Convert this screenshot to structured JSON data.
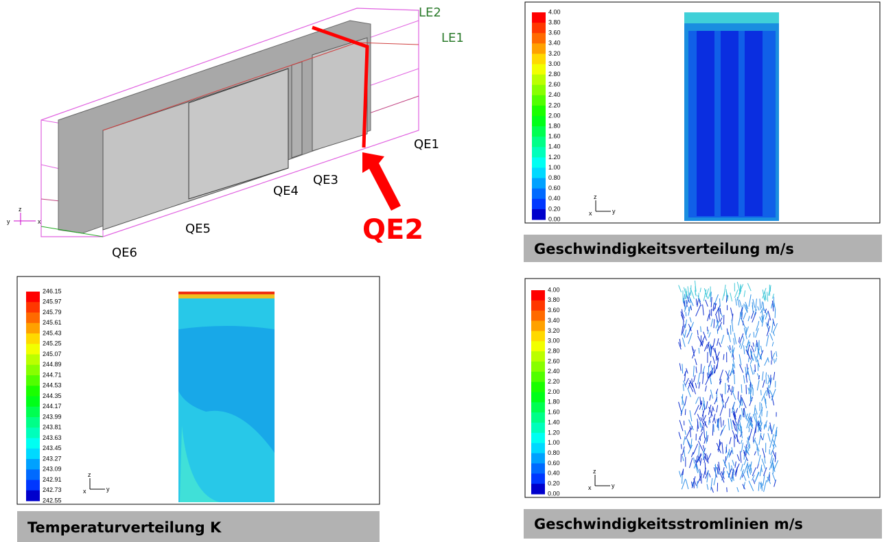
{
  "overview": {
    "labels": {
      "le2": "LE2",
      "le1": "LE1",
      "qe1": "QE1",
      "qe2": "QE2",
      "qe3": "QE3",
      "qe4": "QE4",
      "qe5": "QE5",
      "qe6": "QE6"
    },
    "axes": [
      "z",
      "x",
      "y"
    ]
  },
  "velocity": {
    "scale": [
      "4.00",
      "3.80",
      "3.60",
      "3.40",
      "3.20",
      "3.00",
      "2.80",
      "2.60",
      "2.40",
      "2.20",
      "2.00",
      "1.80",
      "1.60",
      "1.40",
      "1.20",
      "1.00",
      "0.80",
      "0.60",
      "0.40",
      "0.20",
      "0.00"
    ],
    "axes": [
      "z",
      "x",
      "y"
    ],
    "caption": "Geschwindigkeitsverteilung m/s"
  },
  "temperature": {
    "scale": [
      "246.15",
      "245.97",
      "245.79",
      "245.61",
      "245.43",
      "245.25",
      "245.07",
      "244.89",
      "244.71",
      "244.53",
      "244.35",
      "244.17",
      "243.99",
      "243.81",
      "243.63",
      "243.45",
      "243.27",
      "243.09",
      "242.91",
      "242.73",
      "242.55"
    ],
    "axes": [
      "z",
      "x",
      "y"
    ],
    "caption": "Temperaturverteilung K"
  },
  "streamlines": {
    "scale": [
      "4.00",
      "3.80",
      "3.60",
      "3.40",
      "3.20",
      "3.00",
      "2.80",
      "2.60",
      "2.40",
      "2.20",
      "2.00",
      "1.80",
      "1.60",
      "1.40",
      "1.20",
      "1.00",
      "0.80",
      "0.60",
      "0.40",
      "0.20",
      "0.00"
    ],
    "axes": [
      "z",
      "x",
      "y"
    ],
    "caption": "Geschwindigkeitsstromlinien m/s"
  }
}
